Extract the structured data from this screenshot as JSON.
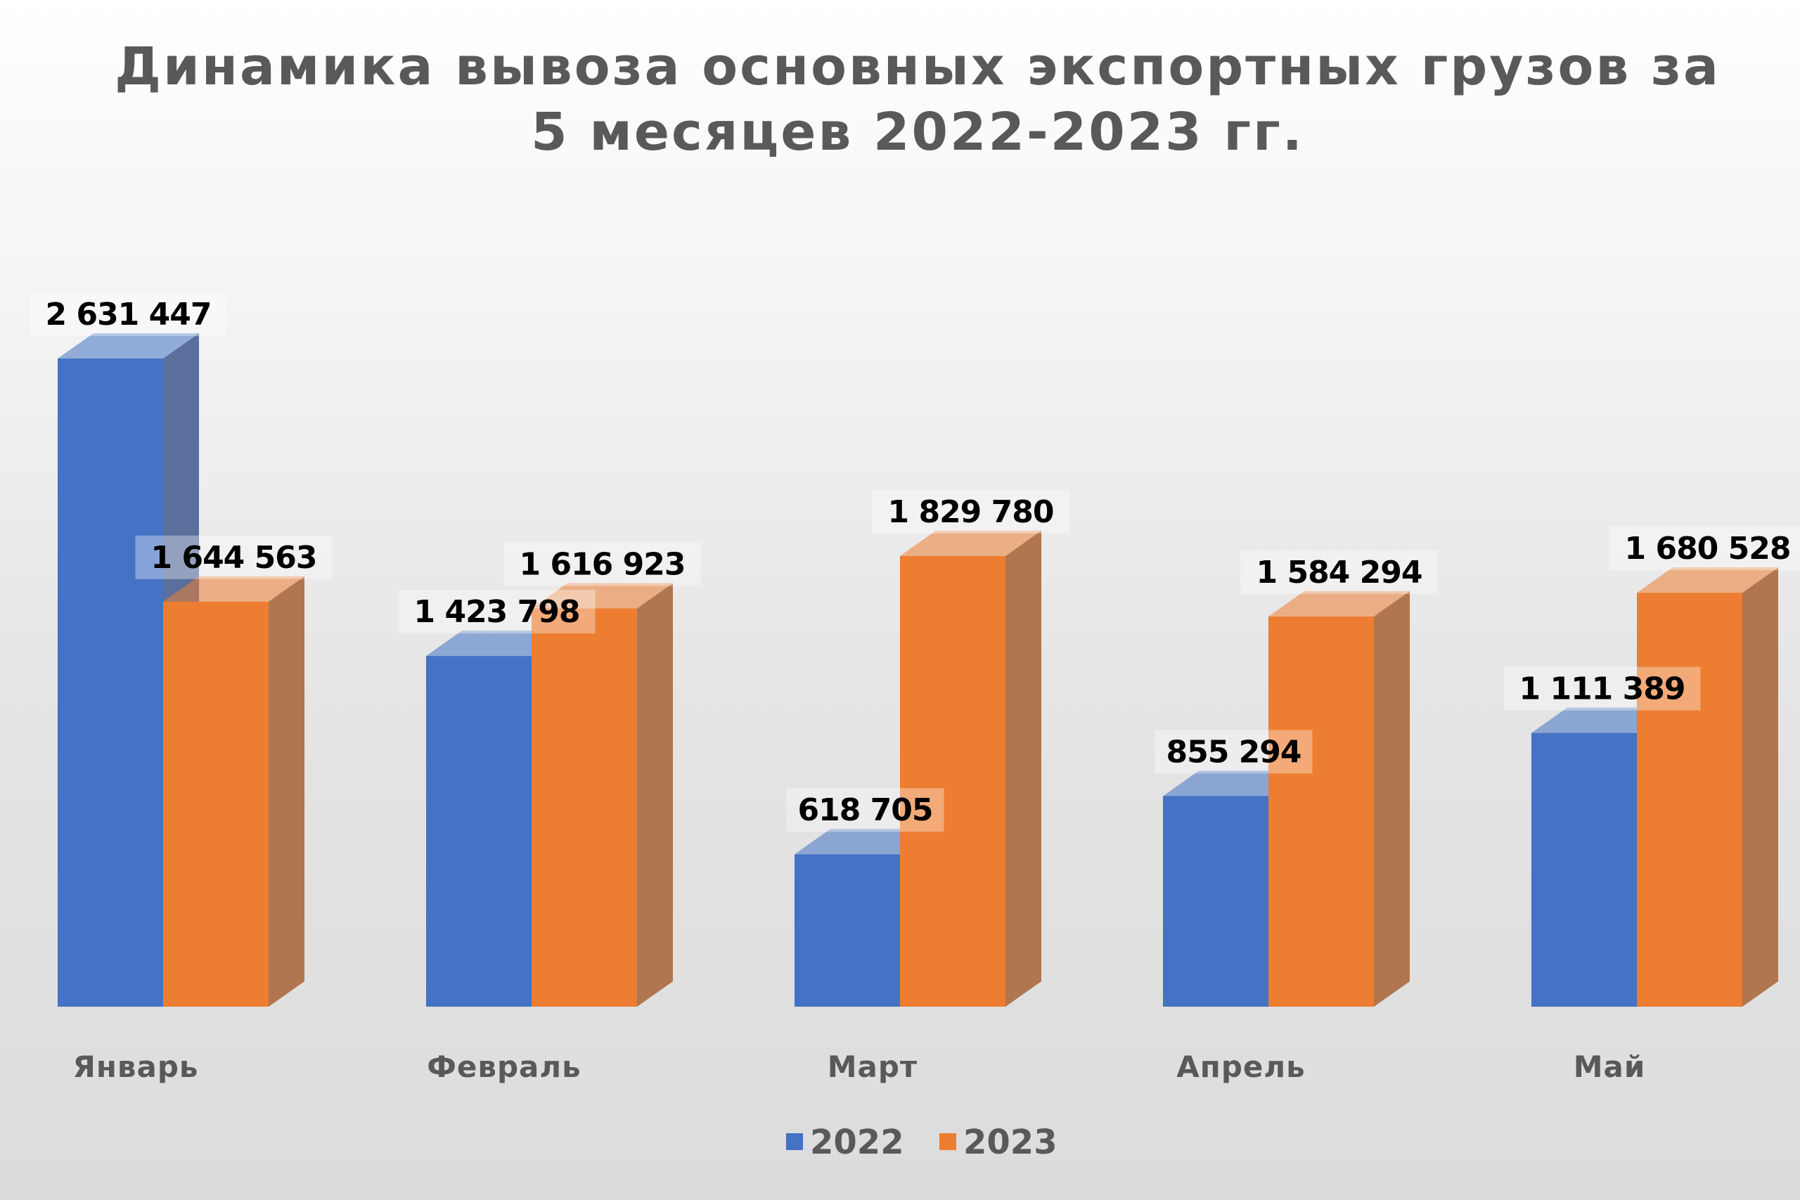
{
  "chart_data": {
    "type": "bar",
    "style": "3d-clustered-column",
    "title": "Динамика вывоза основных экспортных грузов за 5 месяцев 2022-2023 гг.",
    "title_lines": [
      "Динамика вывоза основных экспортных грузов за",
      "5 месяцев 2022-2023 гг."
    ],
    "categories": [
      "Январь",
      "Февраль",
      "Март",
      "Апрель",
      "Май"
    ],
    "series": [
      {
        "name": "2022",
        "color": "#4472C4",
        "side_color": "#5A6F9C",
        "values": [
          2631447,
          1423798,
          618705,
          855294,
          1111389
        ],
        "labels": [
          "2 631 447",
          "1 423 798",
          "618 705",
          "855 294",
          "1 111 389"
        ]
      },
      {
        "name": "2023",
        "color": "#ED7D31",
        "side_color": "#B0764F",
        "values": [
          1644563,
          1616923,
          1829780,
          1584294,
          1680528
        ],
        "labels": [
          "1 644 563",
          "1 616 923",
          "1 829 780",
          "1 584 294",
          "1 680 528"
        ]
      }
    ],
    "xlabel": "",
    "ylabel": "",
    "grid": false,
    "legend": "bottom"
  }
}
